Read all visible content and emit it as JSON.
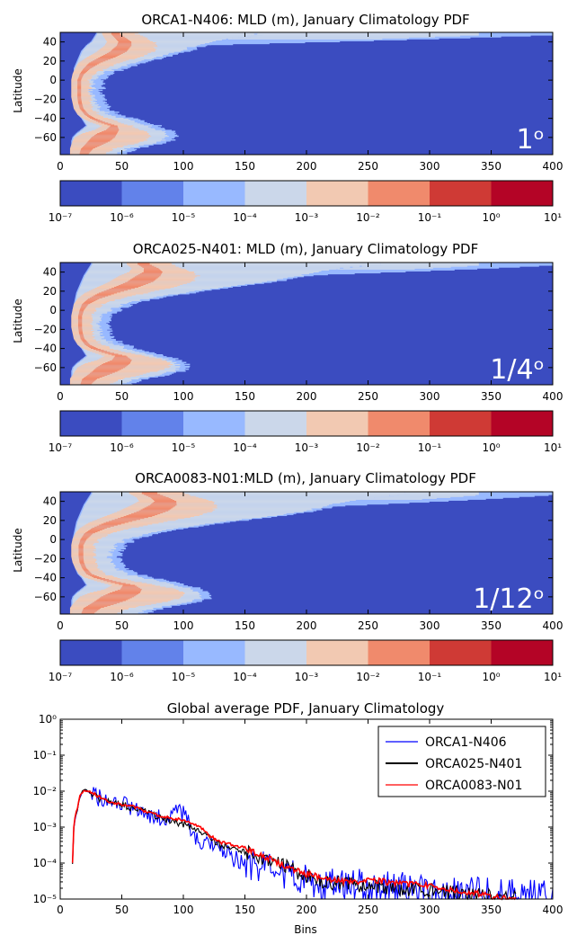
{
  "chart_data": [
    {
      "type": "heatmap",
      "title": "ORCA1-N406: MLD (m), January Climatology PDF",
      "ylabel": "Latitude",
      "xlabel": "",
      "xlim": [
        0,
        400
      ],
      "ylim": [
        -78,
        50
      ],
      "xticks": [
        "0",
        "50",
        "100",
        "150",
        "200",
        "250",
        "300",
        "350",
        "400"
      ],
      "yticks": [
        "40",
        "20",
        "0",
        "−20",
        "−40",
        "−60"
      ],
      "annotation": "1ᵒ",
      "profile": {
        "lat": [
          -78,
          -72,
          -68,
          -64,
          -60,
          -56,
          -52,
          -48,
          -44,
          -40,
          -36,
          -30,
          -24,
          -18,
          -12,
          -6,
          0,
          6,
          12,
          18,
          24,
          30,
          36,
          40,
          44,
          48
        ],
        "core_lo": [
          12,
          12,
          13,
          14,
          16,
          22,
          32,
          38,
          28,
          22,
          18,
          15,
          14,
          13,
          13,
          13,
          13,
          14,
          16,
          19,
          26,
          34,
          40,
          42,
          40,
          38
        ],
        "core_hi": [
          32,
          40,
          52,
          64,
          70,
          68,
          62,
          54,
          44,
          34,
          28,
          22,
          20,
          20,
          20,
          20,
          20,
          24,
          32,
          45,
          62,
          72,
          74,
          72,
          66,
          58
        ],
        "lo": [
          10,
          10,
          10,
          10,
          11,
          14,
          18,
          22,
          20,
          18,
          15,
          13,
          12,
          11,
          11,
          11,
          11,
          12,
          12,
          14,
          16,
          18,
          22,
          26,
          28,
          30
        ],
        "hi": [
          45,
          55,
          70,
          82,
          88,
          86,
          80,
          72,
          62,
          50,
          40,
          32,
          28,
          26,
          26,
          26,
          28,
          34,
          44,
          62,
          80,
          96,
          110,
          125,
          140,
          160
        ],
        "tail_lat": [
          36,
          50
        ],
        "tail_max": 400
      }
    },
    {
      "type": "heatmap",
      "title": "ORCA025-N401: MLD (m), January Climatology PDF",
      "ylabel": "Latitude",
      "xlabel": "",
      "xlim": [
        0,
        400
      ],
      "ylim": [
        -78,
        50
      ],
      "xticks": [
        "0",
        "50",
        "100",
        "150",
        "200",
        "250",
        "300",
        "350",
        "400"
      ],
      "yticks": [
        "40",
        "20",
        "0",
        "−20",
        "−40",
        "−60"
      ],
      "annotation": "1/4ᵒ",
      "profile": {
        "lat": [
          -78,
          -72,
          -68,
          -64,
          -60,
          -56,
          -52,
          -48,
          -44,
          -40,
          -36,
          -30,
          -24,
          -18,
          -12,
          -6,
          0,
          6,
          12,
          18,
          24,
          30,
          36,
          40,
          44,
          48
        ],
        "core_lo": [
          12,
          12,
          14,
          16,
          18,
          24,
          34,
          40,
          30,
          22,
          18,
          15,
          14,
          13,
          13,
          13,
          14,
          15,
          18,
          24,
          34,
          44,
          52,
          60,
          62,
          58
        ],
        "core_hi": [
          36,
          46,
          60,
          74,
          84,
          86,
          80,
          66,
          50,
          38,
          30,
          24,
          22,
          22,
          22,
          22,
          24,
          30,
          44,
          66,
          90,
          104,
          108,
          104,
          96,
          86
        ],
        "lo": [
          10,
          10,
          10,
          10,
          11,
          14,
          18,
          22,
          20,
          18,
          15,
          13,
          12,
          11,
          11,
          11,
          11,
          12,
          13,
          14,
          16,
          18,
          20,
          22,
          24,
          26
        ],
        "hi": [
          50,
          62,
          80,
          92,
          96,
          94,
          88,
          78,
          66,
          54,
          44,
          36,
          32,
          32,
          32,
          34,
          40,
          50,
          70,
          100,
          135,
          170,
          195,
          210,
          230,
          260
        ],
        "tail_lat": [
          36,
          50
        ],
        "tail_max": 400
      }
    },
    {
      "type": "heatmap",
      "title": "ORCA0083-N01:MLD (m), January Climatology PDF",
      "ylabel": "Latitude",
      "xlabel": "",
      "xlim": [
        0,
        400
      ],
      "ylim": [
        -78,
        50
      ],
      "xticks": [
        "0",
        "50",
        "100",
        "150",
        "200",
        "250",
        "300",
        "350",
        "400"
      ],
      "yticks": [
        "40",
        "20",
        "0",
        "−20",
        "−40",
        "−60"
      ],
      "annotation": "1/12ᵒ",
      "profile": {
        "lat": [
          -78,
          -72,
          -68,
          -64,
          -60,
          -56,
          -52,
          -48,
          -44,
          -40,
          -36,
          -30,
          -24,
          -18,
          -12,
          -6,
          0,
          6,
          12,
          18,
          24,
          30,
          36,
          40,
          44,
          48
        ],
        "core_lo": [
          12,
          12,
          14,
          17,
          20,
          28,
          40,
          46,
          34,
          24,
          19,
          16,
          14,
          13,
          13,
          13,
          14,
          16,
          20,
          28,
          40,
          52,
          62,
          68,
          66,
          60
        ],
        "core_hi": [
          40,
          52,
          70,
          86,
          96,
          98,
          90,
          74,
          56,
          42,
          32,
          26,
          24,
          24,
          24,
          24,
          28,
          36,
          54,
          80,
          106,
          120,
          124,
          118,
          108,
          96
        ],
        "lo": [
          10,
          10,
          10,
          10,
          11,
          14,
          18,
          22,
          20,
          18,
          15,
          13,
          12,
          11,
          11,
          11,
          11,
          12,
          13,
          14,
          16,
          18,
          20,
          22,
          24,
          26
        ],
        "hi": [
          60,
          76,
          95,
          108,
          116,
          114,
          106,
          94,
          80,
          66,
          54,
          44,
          40,
          40,
          42,
          46,
          54,
          70,
          96,
          130,
          170,
          200,
          220,
          235,
          255,
          280
        ],
        "tail_lat": [
          34,
          50
        ],
        "tail_max": 400
      }
    },
    {
      "type": "colorbar",
      "scale": "log",
      "labels": [
        "10⁻⁷",
        "10⁻⁶",
        "10⁻⁵",
        "10⁻⁴",
        "10⁻³",
        "10⁻²",
        "10⁻¹",
        "10⁰",
        "10¹"
      ],
      "colors": [
        "#3b4cc0",
        "#6282ea",
        "#98b9ff",
        "#cbd7ea",
        "#f2c9b2",
        "#f08a6c",
        "#cf3a35",
        "#b40426"
      ]
    },
    {
      "type": "line",
      "title": "Global average PDF, January Climatology",
      "xlabel": "Bins",
      "ylabel": "",
      "xlim": [
        0,
        400
      ],
      "ylim": [
        1e-05,
        1
      ],
      "yscale": "log",
      "xticks": [
        "0",
        "50",
        "100",
        "150",
        "200",
        "250",
        "300",
        "350",
        "400"
      ],
      "yticks": [
        "10⁰",
        "10⁻¹",
        "10⁻²",
        "10⁻³",
        "10⁻⁴",
        "10⁻⁵"
      ],
      "legend": "top-right",
      "series": [
        {
          "name": "ORCA1-N406",
          "color": "#0000ff",
          "x": [
            10,
            12,
            14,
            16,
            18,
            20,
            25,
            30,
            40,
            50,
            60,
            70,
            80,
            85,
            90,
            95,
            100,
            103,
            106,
            110,
            120,
            130,
            140,
            150,
            160,
            170,
            180,
            190,
            200,
            210,
            220,
            230,
            240,
            250,
            260,
            270,
            280,
            290,
            300,
            310,
            320,
            330,
            340,
            350,
            360,
            370,
            380,
            390,
            400
          ],
          "y": [
            0.0001,
            0.0016,
            0.003,
            0.0065,
            0.0095,
            0.0108,
            0.0088,
            0.0068,
            0.0046,
            0.0042,
            0.0032,
            0.0023,
            0.0018,
            0.0015,
            0.0017,
            0.0026,
            0.0023,
            0.0017,
            0.0009,
            0.0005,
            0.0003,
            0.00024,
            0.00014,
            0.00011,
            8e-05,
            6e-05,
            4.5e-05,
            4e-05,
            3.2e-05,
            2.8e-05,
            2.6e-05,
            2.4e-05,
            2.2e-05,
            2.1e-05,
            2e-05,
            1.9e-05,
            1.8e-05,
            1.7e-05,
            1.6e-05,
            1.5e-05,
            1.45e-05,
            1.4e-05,
            1.35e-05,
            1.3e-05,
            1.25e-05,
            1.2e-05,
            1.15e-05,
            1.1e-05,
            1.05e-05
          ],
          "noise": 0.42
        },
        {
          "name": "ORCA025-N401",
          "color": "#000000",
          "x": [
            10,
            12,
            14,
            16,
            18,
            20,
            25,
            30,
            40,
            50,
            60,
            70,
            80,
            90,
            100,
            110,
            120,
            130,
            140,
            150,
            160,
            170,
            180,
            190,
            200,
            210,
            220,
            230,
            240,
            250,
            260,
            270,
            280,
            290,
            300,
            310,
            320,
            330,
            340,
            350,
            360,
            370
          ],
          "y": [
            0.0001,
            0.0017,
            0.0032,
            0.0068,
            0.0098,
            0.011,
            0.009,
            0.0066,
            0.0046,
            0.0041,
            0.0034,
            0.0025,
            0.0019,
            0.0015,
            0.0012,
            0.00085,
            0.0005,
            0.00033,
            0.00025,
            0.0002,
            0.00016,
            0.00012,
            8.5e-05,
            6e-05,
            4.5e-05,
            3.5e-05,
            3e-05,
            2.8e-05,
            2.6e-05,
            2.3e-05,
            2.2e-05,
            2.1e-05,
            2e-05,
            1.9e-05,
            1.7e-05,
            1.6e-05,
            1.5e-05,
            1.35e-05,
            1.25e-05,
            1.15e-05,
            1.05e-05,
            1e-05
          ],
          "noise": 0.18
        },
        {
          "name": "ORCA0083-N01",
          "color": "#ff0000",
          "x": [
            10,
            12,
            14,
            16,
            18,
            20,
            25,
            30,
            40,
            50,
            60,
            70,
            80,
            90,
            100,
            110,
            120,
            130,
            140,
            150,
            160,
            170,
            180,
            190,
            200,
            210,
            220,
            230,
            240,
            250,
            260,
            270,
            280,
            290,
            300,
            310,
            320,
            330,
            340,
            350,
            360,
            370
          ],
          "y": [
            0.0001,
            0.0018,
            0.0033,
            0.007,
            0.0095,
            0.0105,
            0.0095,
            0.0075,
            0.0049,
            0.0043,
            0.0036,
            0.0027,
            0.0021,
            0.0018,
            0.0016,
            0.0012,
            0.0006,
            0.00038,
            0.00032,
            0.00026,
            0.00018,
            0.00013,
            9e-05,
            6.5e-05,
            5e-05,
            4e-05,
            3.5e-05,
            3.2e-05,
            3e-05,
            3.3e-05,
            3.2e-05,
            2.8e-05,
            2.6e-05,
            2.5e-05,
            2.3e-05,
            2.1e-05,
            1.8e-05,
            1.6e-05,
            1.4e-05,
            1.2e-05,
            1.05e-05,
            1e-05
          ],
          "noise": 0.07
        }
      ]
    }
  ]
}
